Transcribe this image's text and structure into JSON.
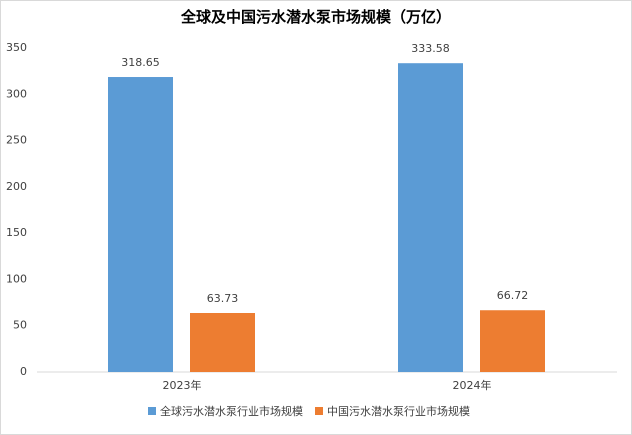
{
  "chart_data": {
    "type": "bar",
    "title": "全球及中国污水潜水泵市场规模（万亿）",
    "categories": [
      "2023年",
      "2024年"
    ],
    "series": [
      {
        "name": "全球污水潜水泵行业市场规模",
        "color": "#5b9bd5",
        "values": [
          318.65,
          333.58
        ]
      },
      {
        "name": "中国污水潜水泵行业市场规模",
        "color": "#ed7d31",
        "values": [
          63.73,
          66.72
        ]
      }
    ],
    "ylim": [
      0,
      350
    ],
    "yticks": [
      0,
      50,
      100,
      150,
      200,
      250,
      300,
      350
    ],
    "grid": false,
    "legend": "bottom"
  }
}
